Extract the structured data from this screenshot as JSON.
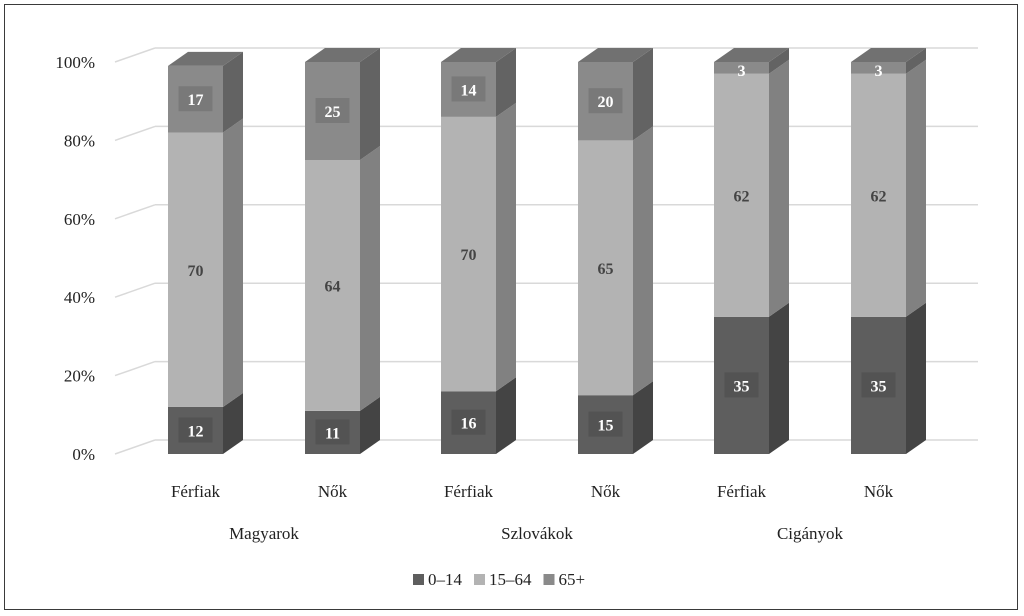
{
  "chart_data": {
    "type": "bar",
    "stacked": true,
    "percent": true,
    "three_d": true,
    "grid": true,
    "legend_position": "bottom",
    "y_ticks": [
      "0%",
      "20%",
      "40%",
      "60%",
      "80%",
      "100%"
    ],
    "ylim": [
      0,
      100
    ],
    "groups": [
      {
        "label": "Magyarok",
        "categories": [
          "Férfiak",
          "Nők"
        ]
      },
      {
        "label": "Szlovákok",
        "categories": [
          "Férfiak",
          "Nők"
        ]
      },
      {
        "label": "Cigányok",
        "categories": [
          "Férfiak",
          "Nők"
        ]
      }
    ],
    "categories": [
      "Férfiak",
      "Nők",
      "Férfiak",
      "Nők",
      "Férfiak",
      "Nők"
    ],
    "series": [
      {
        "name": "0–14",
        "color": "#5e5e5e",
        "values": [
          12,
          11,
          16,
          15,
          35,
          35
        ]
      },
      {
        "name": "15–64",
        "color": "#b3b3b3",
        "values": [
          70,
          64,
          70,
          65,
          62,
          62
        ]
      },
      {
        "name": "65+",
        "color": "#8a8a8a",
        "values": [
          17,
          25,
          14,
          20,
          3,
          3
        ]
      }
    ]
  }
}
